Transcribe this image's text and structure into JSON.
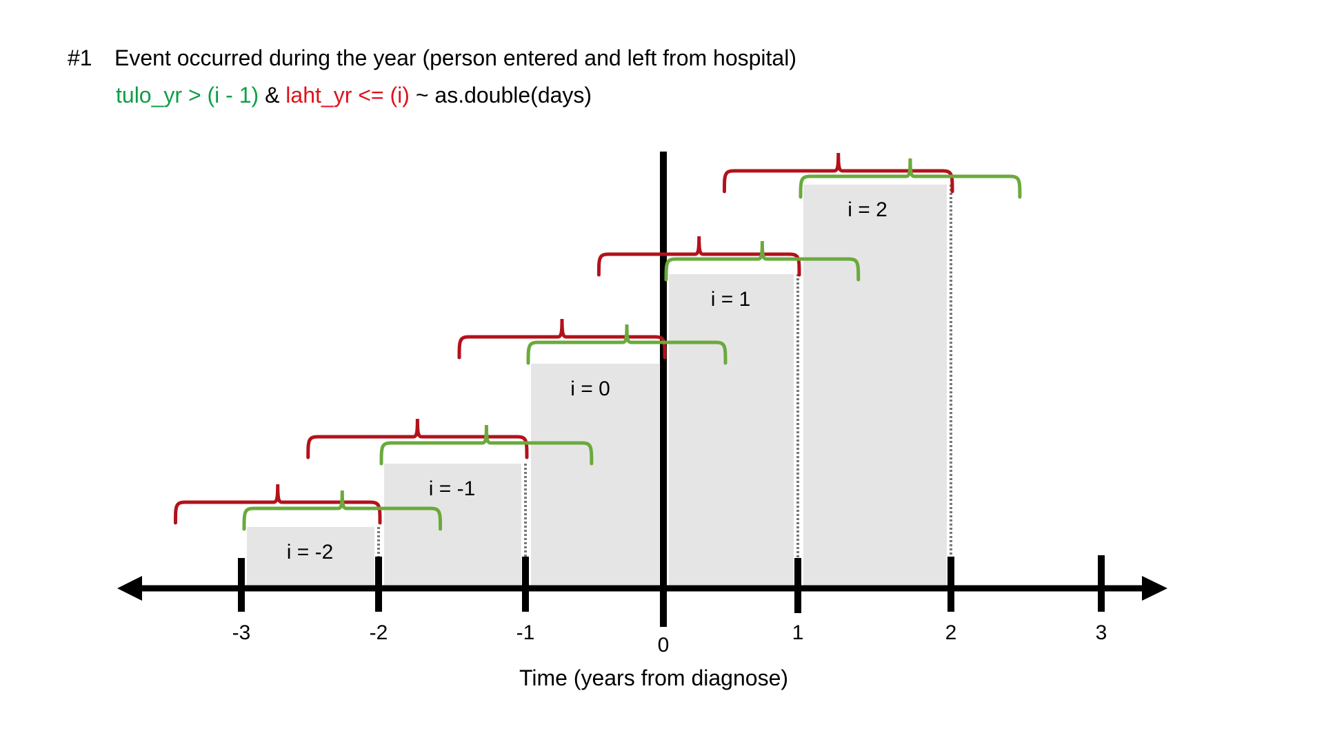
{
  "header": {
    "number": "#1",
    "title": "Event occurred during the year (person entered and left from hospital)",
    "formula": {
      "green_part": "tulo_yr > (i - 1)",
      "amp": " & ",
      "red_part": "laht_yr <= (i)",
      "rest": " ~ as.double(days)"
    }
  },
  "axis": {
    "label": "Time (years from diagnose)",
    "ticks": [
      "-3",
      "-2",
      "-1",
      "0",
      "1",
      "2",
      "3"
    ]
  },
  "steps": [
    {
      "label": "i = -2",
      "i": -2,
      "level": 1
    },
    {
      "label": "i = -1",
      "i": -1,
      "level": 2
    },
    {
      "label": "i = 0",
      "i": 0,
      "level": 3
    },
    {
      "label": "i = 1",
      "i": 1,
      "level": 4
    },
    {
      "label": "i = 2",
      "i": 2,
      "level": 5
    }
  ],
  "colors": {
    "green_text": "#0b9e45",
    "red_text": "#e0101a",
    "green_brace": "#6aaa3c",
    "red_brace": "#b3121b",
    "box_fill": "#e6e5e6"
  }
}
